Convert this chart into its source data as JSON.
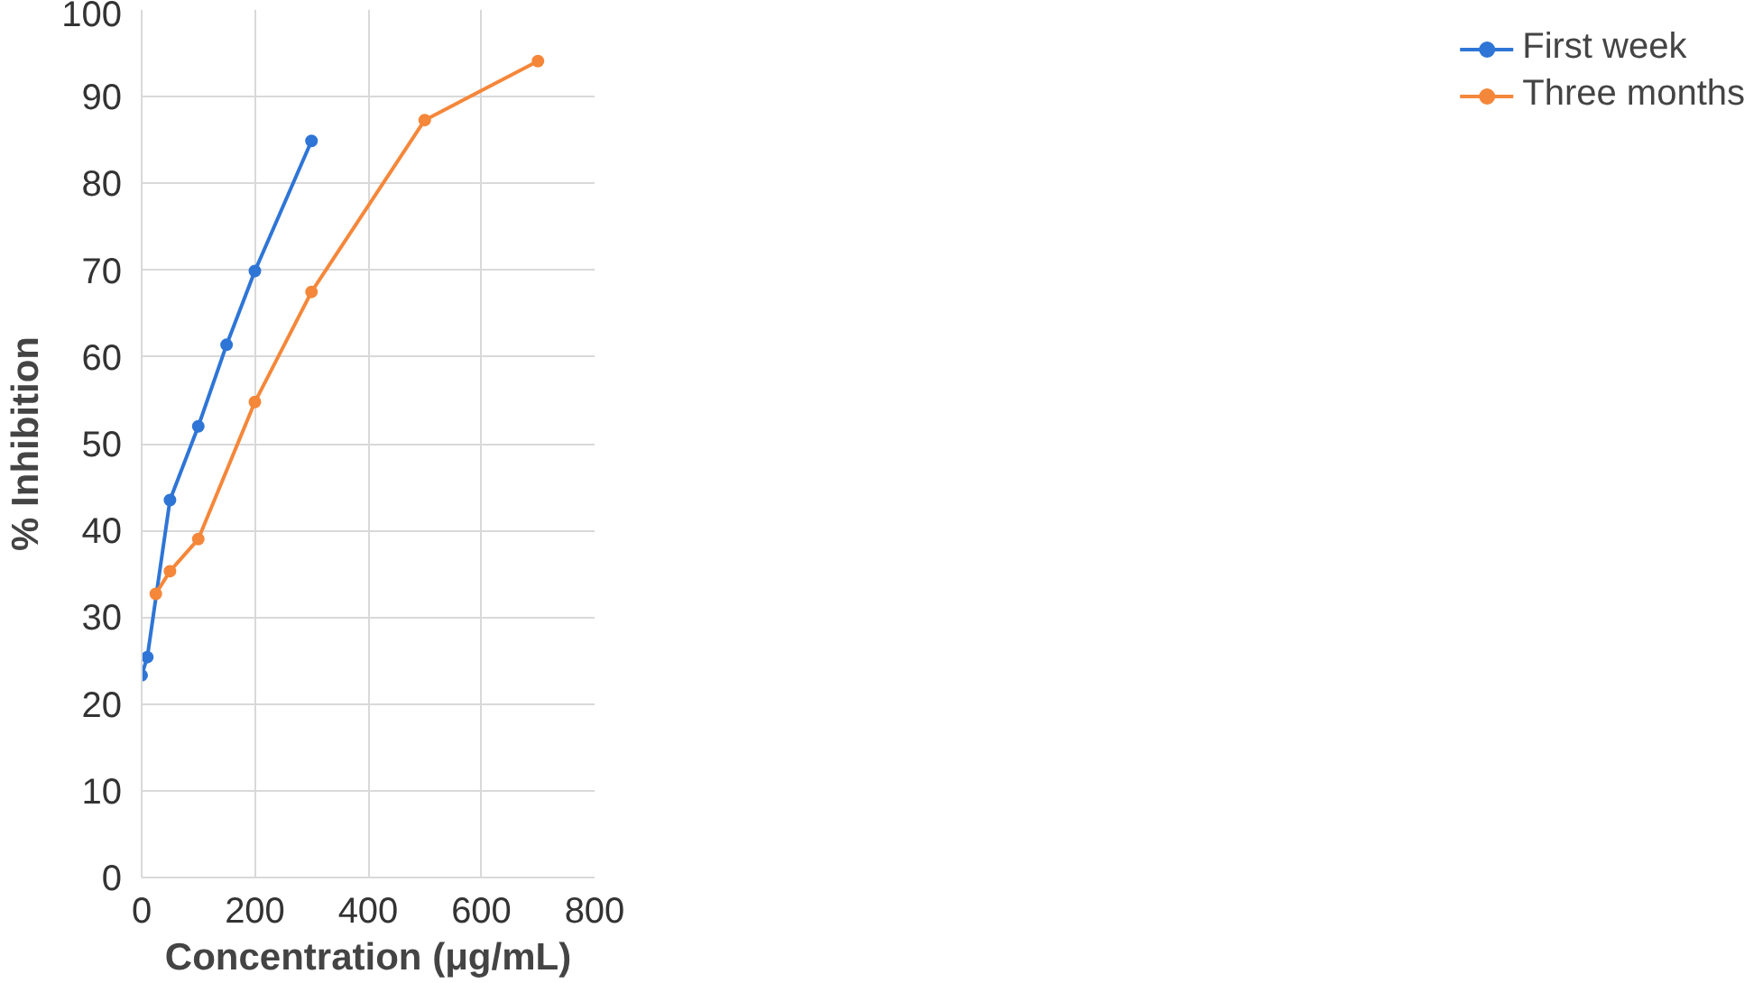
{
  "chart_data": {
    "type": "line",
    "xlabel": "Concentration (μg/mL)",
    "ylabel": "% Inhibition",
    "series": [
      {
        "name": "First week",
        "color": "#2e75d6",
        "x": [
          0,
          10,
          50,
          100,
          150,
          200,
          300
        ],
        "values": [
          23.3,
          25.4,
          43.5,
          52,
          61.4,
          69.9,
          84.9
        ]
      },
      {
        "name": "Three months",
        "color": "#f5873a",
        "x": [
          25,
          50,
          100,
          200,
          300,
          500,
          700
        ],
        "values": [
          32.7,
          35.3,
          39,
          54.8,
          67.5,
          87.3,
          94.1
        ]
      }
    ],
    "xlim": [
      0,
      800
    ],
    "xticks": [
      0,
      200,
      400,
      600,
      800
    ],
    "ylim": [
      0,
      100
    ],
    "yticks": [
      0,
      10,
      20,
      30,
      40,
      50,
      60,
      70,
      80,
      90,
      100
    ],
    "grid": true,
    "legend": "right",
    "marker": "circle",
    "line_style": "solid"
  }
}
